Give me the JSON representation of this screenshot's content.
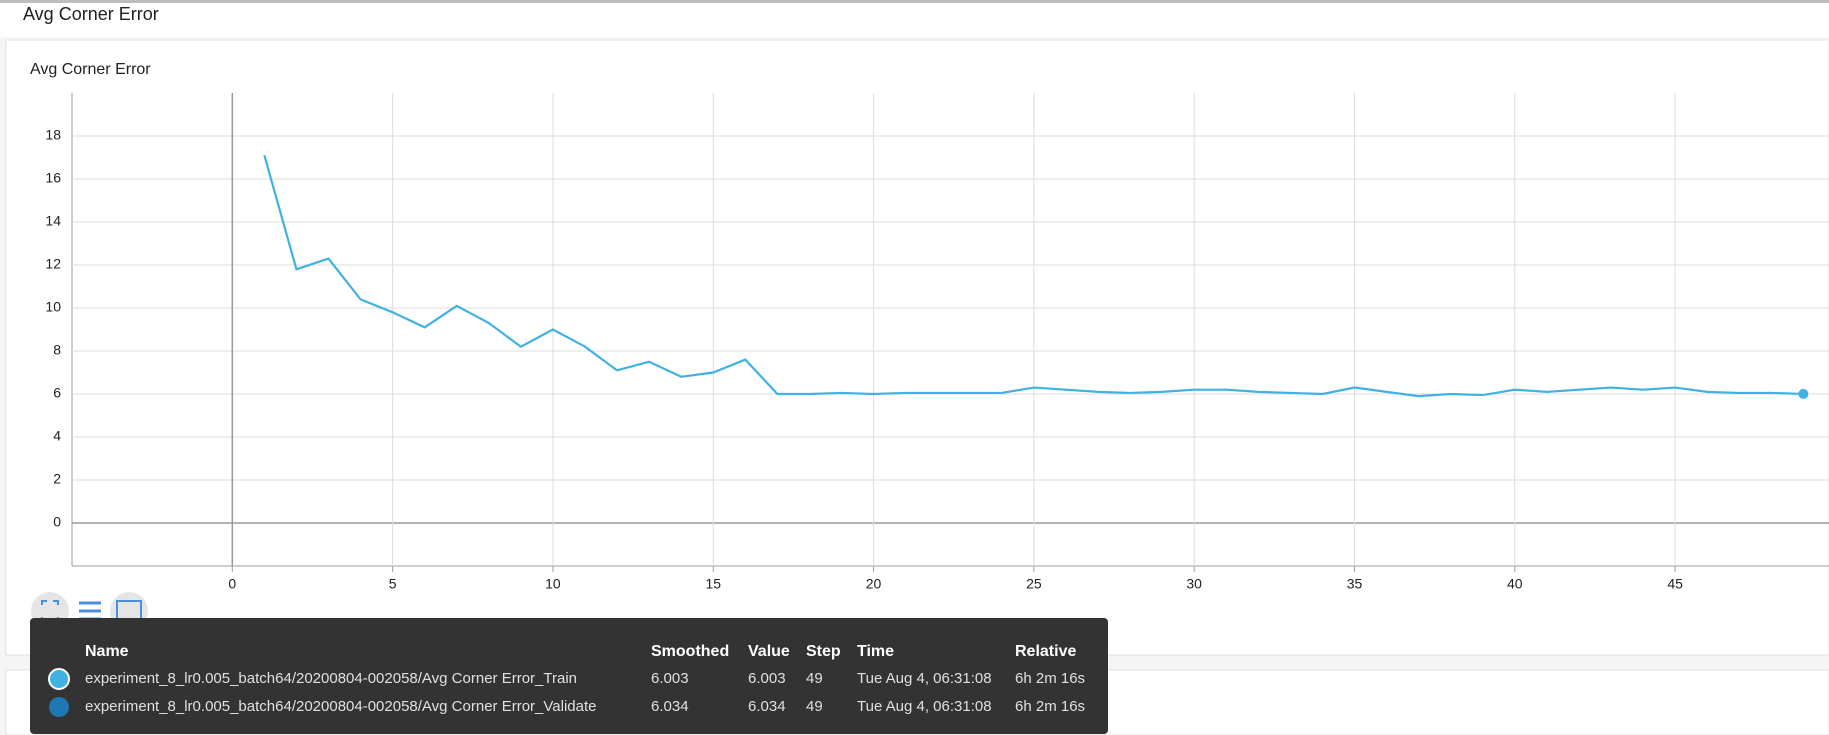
{
  "header": {
    "title": "Avg Corner Error"
  },
  "chart_data": {
    "type": "line",
    "title": "Avg Corner Error",
    "x": [
      1,
      2,
      3,
      4,
      5,
      6,
      7,
      8,
      9,
      10,
      11,
      12,
      13,
      14,
      15,
      16,
      17,
      18,
      19,
      20,
      21,
      22,
      23,
      24,
      25,
      26,
      27,
      28,
      29,
      30,
      31,
      32,
      33,
      34,
      35,
      36,
      37,
      38,
      39,
      40,
      41,
      42,
      43,
      44,
      45,
      46,
      47,
      48,
      49
    ],
    "series": [
      {
        "color": "#3fb1e3",
        "values": [
          17.1,
          11.8,
          12.3,
          10.4,
          9.8,
          9.1,
          10.1,
          9.3,
          8.2,
          9.0,
          8.2,
          7.1,
          7.5,
          6.8,
          7.0,
          7.6,
          6.0,
          6.0,
          6.05,
          6.0,
          6.05,
          6.05,
          6.05,
          6.05,
          6.3,
          6.2,
          6.1,
          6.05,
          6.1,
          6.2,
          6.2,
          6.1,
          6.05,
          6.0,
          6.3,
          6.1,
          5.9,
          6.0,
          5.95,
          6.2,
          6.1,
          6.2,
          6.3,
          6.2,
          6.3,
          6.1,
          6.05,
          6.05,
          6.003
        ]
      }
    ],
    "xlim": [
      -5,
      49.8
    ],
    "ylim": [
      -2,
      20
    ],
    "xticks": [
      0,
      5,
      10,
      15,
      20,
      25,
      30,
      35,
      40,
      45
    ],
    "yticks": [
      0,
      2,
      4,
      6,
      8,
      10,
      12,
      14,
      16,
      18
    ],
    "grid": true
  },
  "tooltip": {
    "columns": [
      "Name",
      "Smoothed",
      "Value",
      "Step",
      "Time",
      "Relative"
    ],
    "rows": [
      {
        "color": "#3fb1e3",
        "cells": [
          "experiment_8_lr0.005_batch64/20200804-002058/Avg Corner Error_Train",
          6.003,
          6.003,
          49,
          "Tue Aug 4, 06:31:08",
          "6h 2m 16s"
        ]
      },
      {
        "color": "#1f77b4",
        "cells": [
          "experiment_8_lr0.005_batch64/20200804-002058/Avg Corner Error_Validate",
          6.034,
          6.034,
          49,
          "Tue Aug 4, 06:31:08",
          "6h 2m 16s"
        ]
      }
    ]
  }
}
